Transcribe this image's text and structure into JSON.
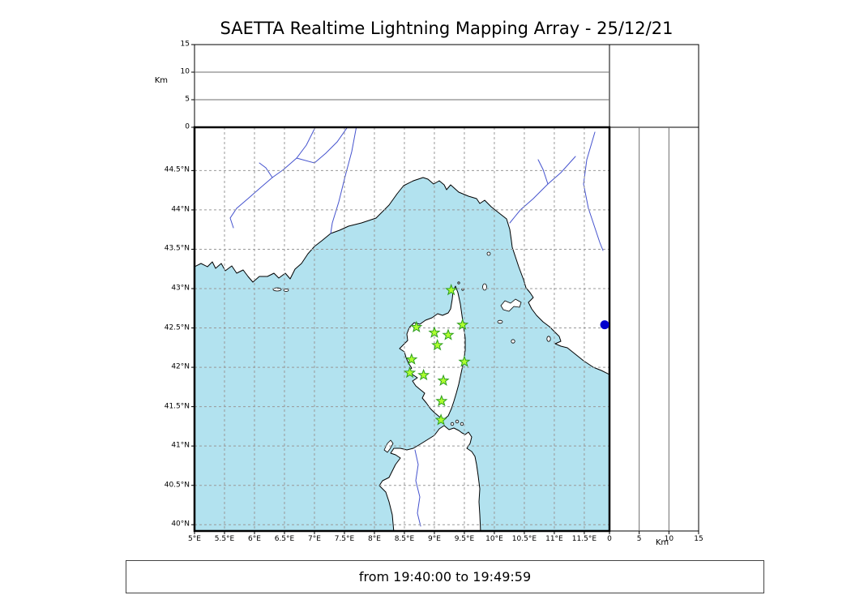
{
  "title": "SAETTA Realtime Lightning Mapping Array - 25/12/21",
  "footer": {
    "time_range": "from 19:40:00 to 19:49:59"
  },
  "chart_data": {
    "type": "scatter",
    "title": "SAETTA Realtime Lightning Mapping Array - 25/12/21",
    "annotation": "from 19:40:00 to 19:49:59",
    "map": {
      "lon_min": 5.0,
      "lon_max": 11.92,
      "lat_min": 39.92,
      "lat_max": 45.05,
      "lon_ticks": [
        5,
        5.5,
        6,
        6.5,
        7,
        7.5,
        8,
        8.5,
        9,
        9.5,
        10,
        10.5,
        11,
        11.5
      ],
      "lon_tick_labels": [
        "5°E",
        "5.5°E",
        "6°E",
        "6.5°E",
        "7°E",
        "7.5°E",
        "8°E",
        "8.5°E",
        "9°E",
        "9.5°E",
        "10°E",
        "10.5°E",
        "11°E",
        "11.5°E"
      ],
      "lat_ticks": [
        40,
        40.5,
        41,
        41.5,
        42,
        42.5,
        43,
        43.5,
        44,
        44.5
      ],
      "lat_tick_labels": [
        "40°N",
        "40.5°N",
        "41°N",
        "41.5°N",
        "42°N",
        "42.5°N",
        "43°N",
        "43.5°N",
        "44°N",
        "44.5°N"
      ],
      "grid": "dashed"
    },
    "altitude_axis": {
      "min": 0,
      "max": 15,
      "ticks": [
        0,
        5,
        10,
        15
      ],
      "tick_labels": [
        "0",
        "5",
        "10",
        "15"
      ],
      "label": "Km"
    },
    "stations": [
      {
        "lon": 9.28,
        "lat": 42.98
      },
      {
        "lon": 8.7,
        "lat": 42.51
      },
      {
        "lon": 9.0,
        "lat": 42.44
      },
      {
        "lon": 9.23,
        "lat": 42.41
      },
      {
        "lon": 9.47,
        "lat": 42.54
      },
      {
        "lon": 9.05,
        "lat": 42.28
      },
      {
        "lon": 8.62,
        "lat": 42.1
      },
      {
        "lon": 9.5,
        "lat": 42.07
      },
      {
        "lon": 8.59,
        "lat": 41.93
      },
      {
        "lon": 8.82,
        "lat": 41.9
      },
      {
        "lon": 9.15,
        "lat": 41.83
      },
      {
        "lon": 9.12,
        "lat": 41.57
      },
      {
        "lon": 9.11,
        "lat": 41.33
      }
    ],
    "events": [
      {
        "lon": 11.84,
        "lat": 42.54
      }
    ],
    "colors": {
      "sea": "#b2e2ef",
      "land": "#ffffff",
      "river": "#4553ce",
      "grid": "#999999",
      "alt_grid": "#6e6e6e",
      "station_fill": "#adff2f",
      "station_edge": "#2e9e20",
      "event": "#0000cd",
      "frame": "#000000"
    }
  }
}
